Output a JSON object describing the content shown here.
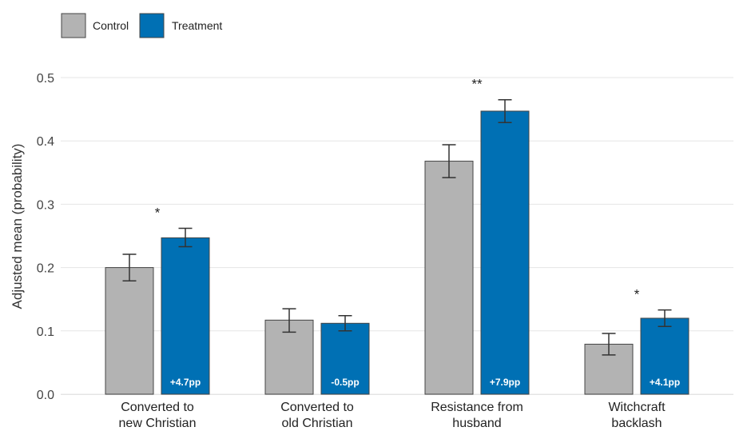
{
  "chart_data": {
    "type": "bar",
    "categories": [
      [
        "Converted to",
        "new Christian"
      ],
      [
        "Converted to",
        "old Christian"
      ],
      [
        "Resistance from",
        "husband"
      ],
      [
        "Witchcraft",
        "backlash"
      ]
    ],
    "series": [
      {
        "name": "Control",
        "color": "#b3b3b3",
        "values": [
          0.2,
          0.117,
          0.368,
          0.079
        ],
        "error_low": [
          0.179,
          0.098,
          0.342,
          0.062
        ],
        "error_high": [
          0.221,
          0.135,
          0.394,
          0.096
        ],
        "bar_labels": [
          "",
          "",
          "",
          ""
        ]
      },
      {
        "name": "Treatment",
        "color": "#0070b4",
        "values": [
          0.247,
          0.112,
          0.447,
          0.12
        ],
        "error_low": [
          0.233,
          0.1,
          0.429,
          0.107
        ],
        "error_high": [
          0.262,
          0.124,
          0.465,
          0.133
        ],
        "bar_labels": [
          "+4.7pp",
          "-0.5pp",
          "+7.9pp",
          "+4.1pp"
        ]
      }
    ],
    "significance": [
      "*",
      "",
      "**",
      "*"
    ],
    "ylabel": "Adjusted mean (probability)",
    "xlabel": "",
    "ylim": [
      0,
      0.5
    ],
    "yticks": [
      0.0,
      0.1,
      0.2,
      0.3,
      0.4,
      0.5
    ],
    "ytick_labels": [
      "0.0",
      "0.1",
      "0.2",
      "0.3",
      "0.4",
      "0.5"
    ],
    "grid": true,
    "legend_position": "top-left",
    "gridline_color": "#e5e5e5",
    "axis_line_color": "#222222",
    "bar_outline_color": "#444444",
    "errorbar_color": "#333333"
  }
}
